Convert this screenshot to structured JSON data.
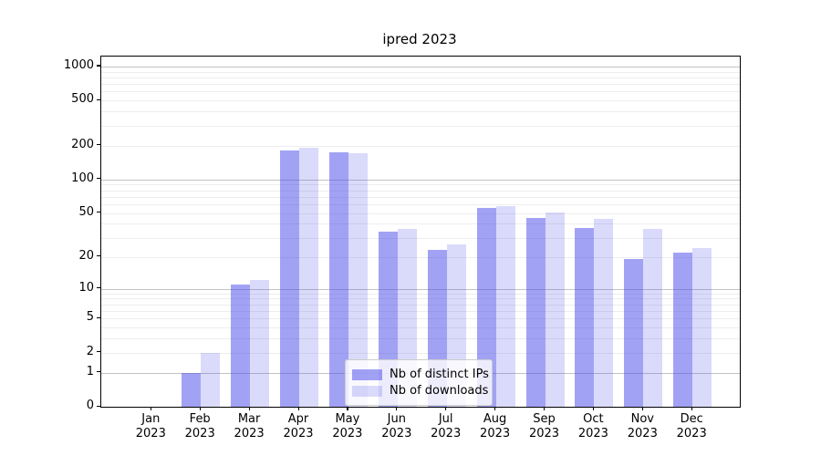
{
  "window": {
    "title": "ipred 2023"
  },
  "chart_data": {
    "type": "bar",
    "title": "ipred 2023",
    "categories": [
      "Jan",
      "Feb",
      "Mar",
      "Apr",
      "May",
      "Jun",
      "Jul",
      "Aug",
      "Sep",
      "Oct",
      "Nov",
      "Dec"
    ],
    "category_year": "2023",
    "series": [
      {
        "name": "Nb of distinct IPs",
        "color": "#4646eb",
        "alpha": 0.5,
        "values": [
          0,
          1,
          11,
          182,
          173,
          34,
          23,
          56,
          45,
          37,
          19,
          22
        ]
      },
      {
        "name": "Nb of downloads",
        "color": "#4646eb",
        "alpha": 0.2,
        "values": [
          0,
          2,
          12,
          190,
          171,
          36,
          26,
          58,
          51,
          44,
          36,
          24
        ]
      }
    ],
    "xlabel": "",
    "ylabel": "",
    "y_scale": "log1p",
    "y_ticks": [
      0,
      1,
      2,
      5,
      10,
      20,
      50,
      100,
      200,
      500,
      1000
    ],
    "ylim": [
      0,
      1224
    ],
    "grid": {
      "orientation": "horizontal",
      "major_color": "#c3c3c3",
      "minor_color": "#ededed"
    },
    "legend": {
      "position": "lower center"
    }
  }
}
